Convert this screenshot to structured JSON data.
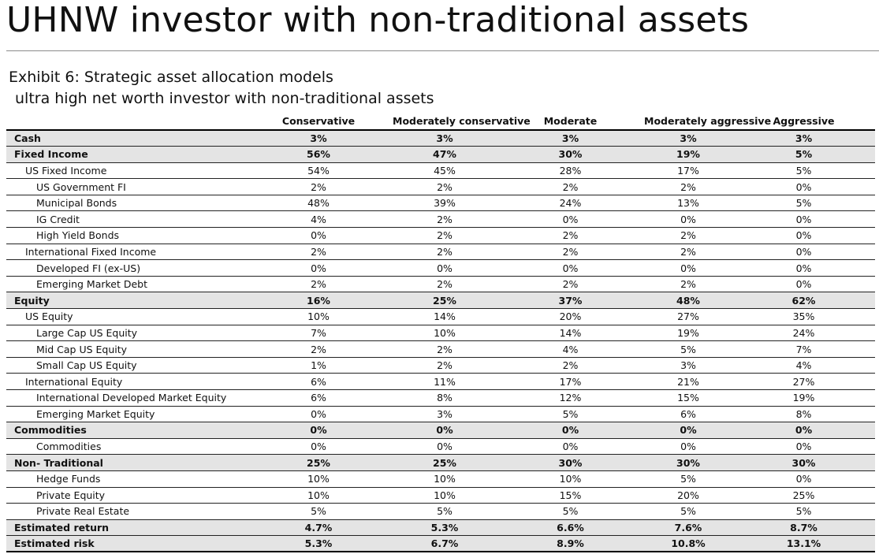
{
  "title": "UHNW investor with non-traditional assets",
  "exhibit_title": "Exhibit 6: Strategic asset allocation models",
  "exhibit_subtitle": "ultra high net worth investor with non-traditional assets",
  "table": {
    "columns": [
      "",
      "Conservative",
      "Moderately conservative",
      "Moderate",
      "Moderately aggressive",
      "Aggressive"
    ],
    "rows": [
      {
        "level": 0,
        "label": "Cash",
        "values": [
          "3%",
          "3%",
          "3%",
          "3%",
          "3%"
        ]
      },
      {
        "level": 0,
        "label": "Fixed Income",
        "values": [
          "56%",
          "47%",
          "30%",
          "19%",
          "5%"
        ]
      },
      {
        "level": 1,
        "label": "US Fixed Income",
        "values": [
          "54%",
          "45%",
          "28%",
          "17%",
          "5%"
        ]
      },
      {
        "level": 2,
        "label": "US Government FI",
        "values": [
          "2%",
          "2%",
          "2%",
          "2%",
          "0%"
        ]
      },
      {
        "level": 2,
        "label": "Municipal Bonds",
        "values": [
          "48%",
          "39%",
          "24%",
          "13%",
          "5%"
        ]
      },
      {
        "level": 2,
        "label": "IG Credit",
        "values": [
          "4%",
          "2%",
          "0%",
          "0%",
          "0%"
        ]
      },
      {
        "level": 2,
        "label": "High Yield Bonds",
        "values": [
          "0%",
          "2%",
          "2%",
          "2%",
          "0%"
        ]
      },
      {
        "level": 1,
        "label": "International Fixed Income",
        "values": [
          "2%",
          "2%",
          "2%",
          "2%",
          "0%"
        ]
      },
      {
        "level": 2,
        "label": "Developed FI (ex-US)",
        "values": [
          "0%",
          "0%",
          "0%",
          "0%",
          "0%"
        ]
      },
      {
        "level": 2,
        "label": "Emerging Market Debt",
        "values": [
          "2%",
          "2%",
          "2%",
          "2%",
          "0%"
        ]
      },
      {
        "level": 0,
        "label": "Equity",
        "values": [
          "16%",
          "25%",
          "37%",
          "48%",
          "62%"
        ]
      },
      {
        "level": 1,
        "label": "US Equity",
        "values": [
          "10%",
          "14%",
          "20%",
          "27%",
          "35%"
        ]
      },
      {
        "level": 2,
        "label": "Large Cap US Equity",
        "values": [
          "7%",
          "10%",
          "14%",
          "19%",
          "24%"
        ]
      },
      {
        "level": 2,
        "label": "Mid Cap US Equity",
        "values": [
          "2%",
          "2%",
          "4%",
          "5%",
          "7%"
        ]
      },
      {
        "level": 2,
        "label": "Small Cap US Equity",
        "values": [
          "1%",
          "2%",
          "2%",
          "3%",
          "4%"
        ]
      },
      {
        "level": 1,
        "label": "International Equity",
        "values": [
          "6%",
          "11%",
          "17%",
          "21%",
          "27%"
        ]
      },
      {
        "level": 2,
        "label": "International Developed Market Equity",
        "values": [
          "6%",
          "8%",
          "12%",
          "15%",
          "19%"
        ]
      },
      {
        "level": 2,
        "label": "Emerging Market Equity",
        "values": [
          "0%",
          "3%",
          "5%",
          "6%",
          "8%"
        ]
      },
      {
        "level": 0,
        "label": "Commodities",
        "values": [
          "0%",
          "0%",
          "0%",
          "0%",
          "0%"
        ]
      },
      {
        "level": 2,
        "label": "Commodities",
        "values": [
          "0%",
          "0%",
          "0%",
          "0%",
          "0%"
        ]
      },
      {
        "level": 0,
        "label": "Non- Traditional",
        "values": [
          "25%",
          "25%",
          "30%",
          "30%",
          "30%"
        ]
      },
      {
        "level": 2,
        "label": "Hedge Funds",
        "values": [
          "10%",
          "10%",
          "10%",
          "5%",
          "0%"
        ]
      },
      {
        "level": 2,
        "label": "Private Equity",
        "values": [
          "10%",
          "10%",
          "15%",
          "20%",
          "25%"
        ]
      },
      {
        "level": 2,
        "label": "Private Real Estate",
        "values": [
          "5%",
          "5%",
          "5%",
          "5%",
          "5%"
        ]
      },
      {
        "level": 0,
        "label": "Estimated return",
        "values": [
          "4.7%",
          "5.3%",
          "6.6%",
          "7.6%",
          "8.7%"
        ]
      },
      {
        "level": 0,
        "label": "Estimated risk",
        "values": [
          "5.3%",
          "6.7%",
          "8.9%",
          "10.8%",
          "13.1%"
        ]
      }
    ]
  }
}
